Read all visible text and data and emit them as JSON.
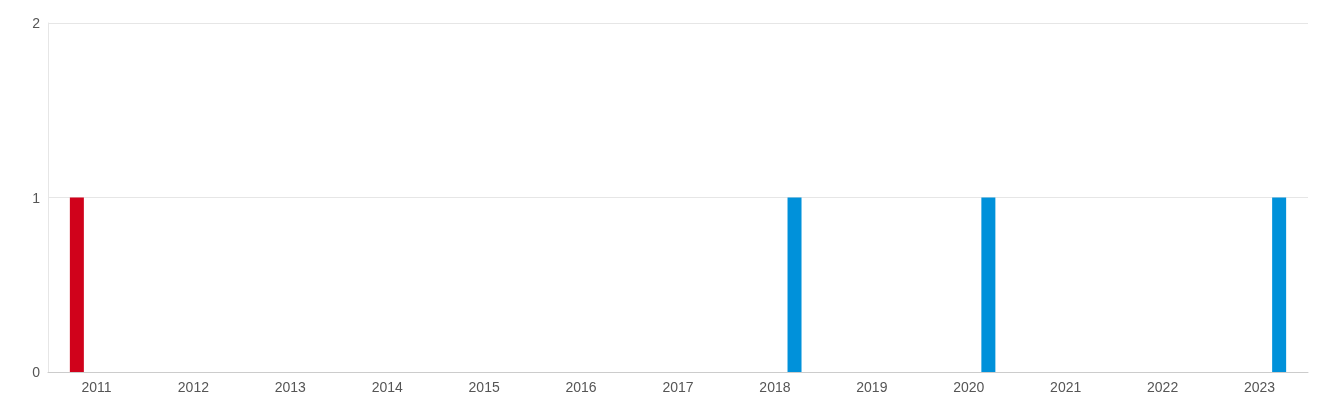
{
  "chart_data": {
    "type": "bar",
    "categories": [
      "2011",
      "2012",
      "2013",
      "2014",
      "2015",
      "2016",
      "2017",
      "2018",
      "2019",
      "2020",
      "2021",
      "2022",
      "2023"
    ],
    "series": [
      {
        "color": "#d0021b",
        "values": [
          1,
          0,
          0,
          0,
          0,
          0,
          0,
          0,
          0,
          0,
          0,
          0,
          0
        ]
      },
      {
        "color": "#0091da",
        "values": [
          0,
          0,
          0,
          0,
          0,
          0,
          0,
          1,
          0,
          1,
          0,
          0,
          1
        ]
      }
    ],
    "ylim": [
      0,
      2
    ],
    "yticks": [
      0,
      1,
      2
    ],
    "grid": "y"
  }
}
